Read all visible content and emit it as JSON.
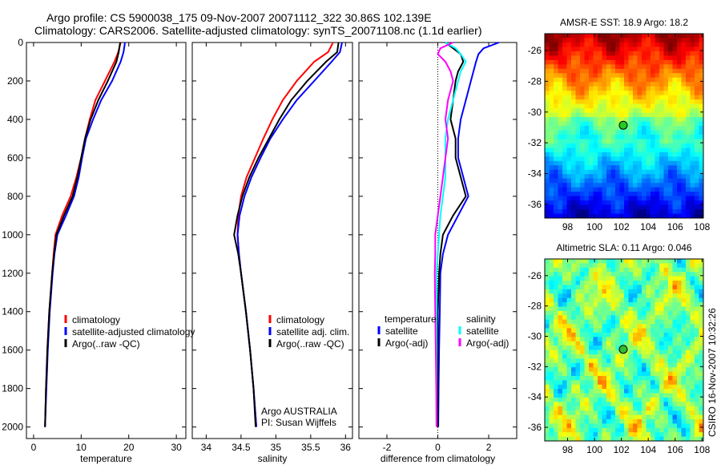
{
  "title_line1": "Argo profile: CS 5900038_175 09-Nov-2007 20071112_322 30.86S 102.139E",
  "title_line2": "Climatology: CARS2006. Satellite-adjusted climatology: synTS_20071108.nc (1.1d earlier)",
  "side_label": "CSIRO 16-Nov-2007 10:32:26",
  "colors": {
    "climatology": "#ff0000",
    "satellite": "#0000ff",
    "argo": "#000000",
    "sal_satellite": "#00ffff",
    "sal_argo": "#ff00ff"
  },
  "chart_data": [
    {
      "type": "line",
      "xlabel": "temperature",
      "xlim": [
        -1.5,
        32
      ],
      "ylim": [
        2060,
        0
      ],
      "xticks": [
        "0",
        "10",
        "20",
        "30"
      ],
      "xtick_values": [
        0,
        10,
        20,
        30
      ],
      "yticks": [
        "0",
        "200",
        "400",
        "600",
        "800",
        "1000",
        "1200",
        "1400",
        "1600",
        "1800",
        "2000"
      ],
      "ytick_values": [
        0,
        200,
        400,
        600,
        800,
        1000,
        1200,
        1400,
        1600,
        1800,
        2000
      ],
      "legend": [
        "climatology",
        "satellite-adjusted climatology",
        "Argo(..raw -QC)"
      ],
      "depth": [
        0,
        50,
        100,
        200,
        300,
        400,
        500,
        600,
        700,
        800,
        900,
        1000,
        1100,
        1200,
        1400,
        1600,
        1800,
        2000
      ],
      "series": [
        {
          "name": "climatology",
          "color": "#ff0000",
          "values": [
            18.3,
            17.8,
            17.0,
            15.0,
            13.0,
            11.8,
            10.8,
            10.0,
            9.0,
            7.8,
            6.0,
            4.6,
            4.2,
            3.9,
            3.3,
            2.9,
            2.6,
            2.4
          ]
        },
        {
          "name": "satellite-adjusted climatology",
          "color": "#0000ff",
          "values": [
            19.2,
            18.9,
            18.3,
            16.5,
            14.2,
            12.5,
            11.0,
            10.2,
            9.5,
            8.5,
            6.8,
            5.0,
            4.4,
            4.0,
            3.4,
            3.0,
            2.7,
            2.4
          ]
        },
        {
          "name": "Argo(..raw -QC)",
          "color": "#000000",
          "values": [
            18.2,
            17.9,
            17.4,
            15.6,
            13.6,
            12.0,
            10.8,
            10.0,
            9.2,
            8.2,
            6.4,
            4.8,
            4.3,
            3.9,
            3.3,
            2.9,
            2.6,
            2.4
          ]
        }
      ]
    },
    {
      "type": "line",
      "xlabel": "salinity",
      "xlim": [
        33.8,
        36.1
      ],
      "ylim": [
        2060,
        0
      ],
      "xticks": [
        "34",
        "34.5",
        "35",
        "35.5",
        "36"
      ],
      "xtick_values": [
        34,
        34.5,
        35,
        35.5,
        36
      ],
      "legend": [
        "climatology",
        "satellite adj. clim.",
        "Argo(..raw -QC)"
      ],
      "annotation": [
        "Argo AUSTRALIA",
        "PI: Susan Wijffels"
      ],
      "depth": [
        0,
        50,
        100,
        200,
        300,
        400,
        500,
        600,
        700,
        800,
        900,
        1000,
        1100,
        1200,
        1400,
        1600,
        1800,
        2000
      ],
      "series": [
        {
          "name": "climatology",
          "color": "#ff0000",
          "values": [
            35.82,
            35.75,
            35.55,
            35.3,
            35.1,
            34.95,
            34.82,
            34.7,
            34.58,
            34.5,
            34.46,
            34.45,
            34.47,
            34.5,
            34.57,
            34.63,
            34.68,
            34.72
          ]
        },
        {
          "name": "satellite adj. clim.",
          "color": "#0000ff",
          "values": [
            35.95,
            35.92,
            35.8,
            35.55,
            35.3,
            35.1,
            34.92,
            34.78,
            34.65,
            34.55,
            34.48,
            34.45,
            34.47,
            34.5,
            34.57,
            34.63,
            34.68,
            34.72
          ]
        },
        {
          "name": "Argo(..raw -QC)",
          "color": "#000000",
          "values": [
            35.9,
            35.88,
            35.72,
            35.45,
            35.22,
            35.05,
            34.9,
            34.75,
            34.62,
            34.52,
            34.45,
            34.4,
            34.46,
            34.5,
            34.57,
            34.63,
            34.68,
            34.71
          ]
        }
      ]
    },
    {
      "type": "line",
      "xlabel": "difference from climatology",
      "xlim": [
        -3.1,
        3.1
      ],
      "ylim": [
        2060,
        0
      ],
      "xticks": [
        "-2",
        "0",
        "2"
      ],
      "xtick_values": [
        -2,
        0,
        2
      ],
      "legend_headers": [
        "temperature",
        "salinity"
      ],
      "legend": [
        "satellite",
        "Argo(-adj)",
        "satellite",
        "Argo(-adj)"
      ],
      "depth": [
        0,
        30,
        60,
        100,
        150,
        200,
        300,
        400,
        500,
        600,
        700,
        800,
        900,
        1000,
        1100,
        1200,
        1400,
        1600,
        1800,
        2000
      ],
      "series": [
        {
          "name": "temperature satellite",
          "color": "#0000ff",
          "values": [
            2.4,
            1.8,
            1.6,
            1.5,
            1.4,
            1.3,
            1.1,
            0.9,
            0.8,
            0.8,
            1.0,
            1.2,
            0.8,
            0.4,
            0.2,
            0.1,
            0.08,
            0.05,
            0.03,
            0.02
          ]
        },
        {
          "name": "temperature Argo(-adj)",
          "color": "#000000",
          "values": [
            0.3,
            0.6,
            0.9,
            1.0,
            0.8,
            0.7,
            0.6,
            0.5,
            0.7,
            0.7,
            0.9,
            1.1,
            0.6,
            0.2,
            0.1,
            0.05,
            0.0,
            0.0,
            0.0,
            0.0
          ]
        },
        {
          "name": "salinity satellite",
          "color": "#00ffff",
          "values": [
            0.3,
            0.7,
            0.9,
            1.1,
            0.9,
            0.8,
            0.6,
            0.4,
            0.3,
            0.3,
            0.3,
            0.2,
            0.1,
            0.05,
            0.0,
            -0.05,
            -0.05,
            -0.05,
            -0.05,
            -0.05
          ]
        },
        {
          "name": "salinity Argo(-adj)",
          "color": "#ff00ff",
          "values": [
            0.6,
            0.1,
            0.0,
            0.3,
            0.5,
            0.6,
            0.4,
            0.3,
            0.4,
            0.3,
            0.2,
            0.1,
            0.0,
            -0.1,
            -0.1,
            -0.12,
            -0.1,
            -0.08,
            -0.06,
            -0.05
          ]
        }
      ]
    },
    {
      "type": "heatmap",
      "title": "AMSR-E SST: 18.9 Argo: 18.2",
      "xlim": [
        96.3,
        108.1
      ],
      "ylim": [
        -36.9,
        -24.9
      ],
      "xticks": [
        "98",
        "100",
        "102",
        "104",
        "106",
        "108"
      ],
      "xtick_values": [
        98,
        100,
        102,
        104,
        106,
        108
      ],
      "yticks": [
        "-26",
        "-28",
        "-30",
        "-32",
        "-34",
        "-36"
      ],
      "ytick_values": [
        -26,
        -28,
        -30,
        -32,
        -34,
        -36
      ],
      "marker": {
        "lon": 102.139,
        "lat": -30.86
      }
    },
    {
      "type": "heatmap",
      "title": "Altimetric SLA: 0.11 Argo: 0.046",
      "xlim": [
        96.3,
        108.1
      ],
      "ylim": [
        -36.9,
        -24.9
      ],
      "xticks": [
        "98",
        "100",
        "102",
        "104",
        "106",
        "108"
      ],
      "xtick_values": [
        98,
        100,
        102,
        104,
        106,
        108
      ],
      "yticks": [
        "-26",
        "-28",
        "-30",
        "-32",
        "-34",
        "-36"
      ],
      "ytick_values": [
        -26,
        -28,
        -30,
        -32,
        -34,
        -36
      ],
      "marker": {
        "lon": 102.139,
        "lat": -30.86
      }
    }
  ]
}
